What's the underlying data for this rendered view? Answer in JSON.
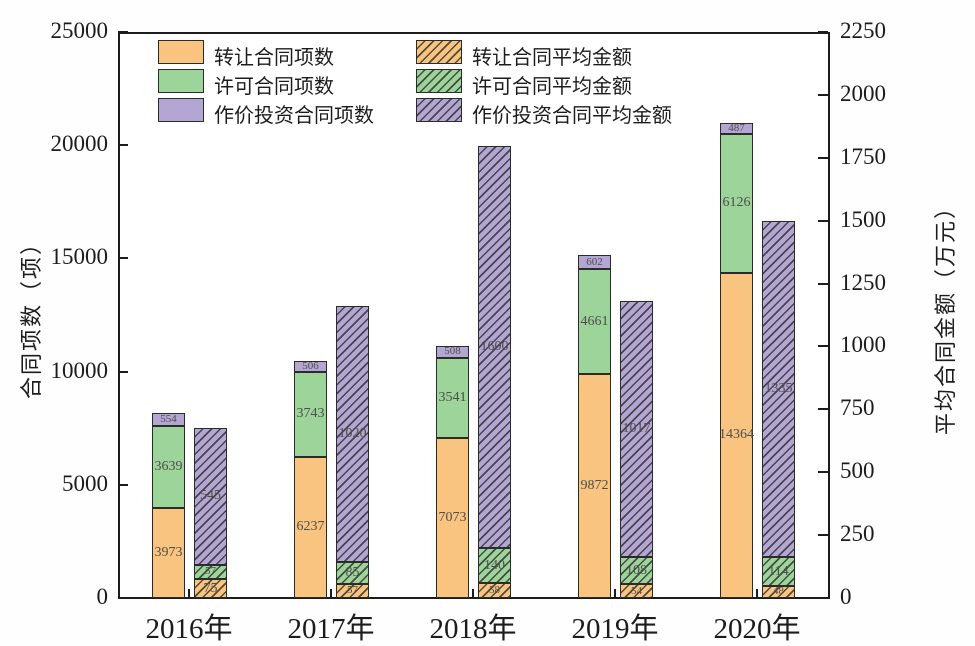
{
  "chart_data": {
    "type": "bar",
    "variant": "dual-axis grouped stacked bars, second group hatched",
    "title": "",
    "categories": [
      "2016年",
      "2017年",
      "2018年",
      "2019年",
      "2020年"
    ],
    "left_axis": {
      "label": "合同项数（项）",
      "min": 0,
      "max": 25000,
      "tick_step": 5000,
      "ticks": [
        0,
        5000,
        10000,
        15000,
        20000,
        25000
      ]
    },
    "right_axis": {
      "label": "平均合同金额（万元）",
      "min": 0,
      "max": 2250,
      "tick_step": 250,
      "ticks": [
        0,
        250,
        500,
        750,
        1000,
        1250,
        1500,
        1750,
        2000,
        2250
      ]
    },
    "grid": false,
    "legend_position": "top-left inside plot, two columns",
    "count_series": [
      {
        "id": "transfer-count",
        "name": "转让合同项数",
        "color": "#f8c47f",
        "hatch": false,
        "values": [
          3973,
          6237,
          7073,
          9872,
          14364
        ]
      },
      {
        "id": "license-count",
        "name": "许可合同项数",
        "color": "#9cd49a",
        "hatch": false,
        "values": [
          3639,
          3743,
          3541,
          4661,
          6126
        ]
      },
      {
        "id": "investment-count",
        "name": "作价投资合同项数",
        "color": "#b3a6d2",
        "hatch": false,
        "values": [
          554,
          506,
          508,
          602,
          487
        ]
      }
    ],
    "amount_series": [
      {
        "id": "transfer-amount",
        "name": "转让合同平均金额",
        "color": "#f8c47f",
        "hatch": true,
        "values": [
          75,
          57,
          58,
          54,
          48
        ]
      },
      {
        "id": "license-amount",
        "name": "许可合同平均金额",
        "color": "#9cd49a",
        "hatch": true,
        "values": [
          57,
          85,
          140,
          108,
          114
        ]
      },
      {
        "id": "investment-amount",
        "name": "作价投资合同平均金额",
        "color": "#b3a6d2",
        "hatch": true,
        "values": [
          545,
          1020,
          1600,
          1017,
          1335
        ]
      }
    ],
    "colors": {
      "edge": "#2b2b2b",
      "text": "#1c1c1c",
      "bar_label": "#4e4e4e"
    }
  }
}
